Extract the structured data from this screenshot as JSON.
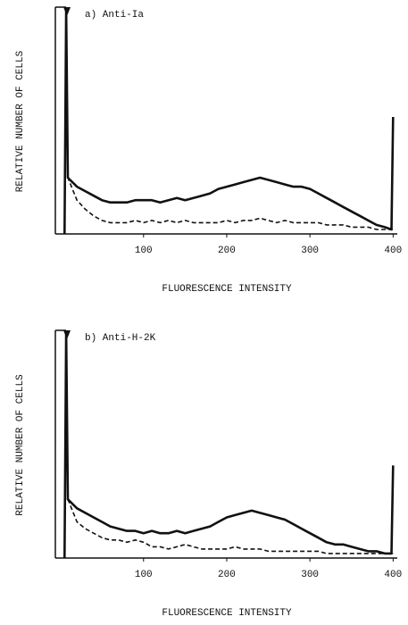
{
  "chart_data": [
    {
      "type": "line",
      "title": "a) Anti-Ia",
      "xlabel": "FLUORESCENCE INTENSITY",
      "ylabel": "RELATIVE NUMBER OF CELLS",
      "x": [
        5,
        7,
        9,
        20,
        30,
        40,
        50,
        60,
        70,
        80,
        90,
        100,
        110,
        120,
        130,
        140,
        150,
        160,
        170,
        180,
        190,
        200,
        210,
        220,
        230,
        240,
        250,
        260,
        270,
        280,
        290,
        300,
        310,
        320,
        330,
        340,
        350,
        360,
        370,
        380,
        390,
        398,
        400
      ],
      "series": [
        {
          "color": "#111111",
          "dashed": false,
          "values": [
            0,
            100,
            25,
            21,
            19,
            17,
            15,
            14,
            14,
            14,
            15,
            15,
            15,
            14,
            15,
            16,
            15,
            16,
            17,
            18,
            20,
            21,
            22,
            23,
            24,
            25,
            24,
            23,
            22,
            21,
            21,
            20,
            18,
            16,
            14,
            12,
            10,
            8,
            6,
            4,
            3,
            2,
            52
          ]
        },
        {
          "color": "#111111",
          "dashed": true,
          "values": [
            0,
            100,
            25,
            15,
            11,
            8,
            6,
            5,
            5,
            5,
            6,
            5,
            6,
            5,
            6,
            5,
            6,
            5,
            5,
            5,
            5,
            6,
            5,
            6,
            6,
            7,
            6,
            5,
            6,
            5,
            5,
            5,
            5,
            4,
            4,
            4,
            3,
            3,
            3,
            2,
            2,
            2,
            2
          ]
        }
      ],
      "xlim": [
        -6,
        405
      ],
      "xticks": [
        100,
        200,
        300,
        400
      ],
      "ylim": [
        0,
        100
      ]
    },
    {
      "type": "line",
      "title": "b) Anti-H-2K",
      "xlabel": "FLUORESCENCE INTENSITY",
      "ylabel": "RELATIVE NUMBER OF CELLS",
      "x": [
        5,
        7,
        9,
        20,
        30,
        40,
        50,
        60,
        70,
        80,
        90,
        100,
        110,
        120,
        130,
        140,
        150,
        160,
        170,
        180,
        190,
        200,
        210,
        220,
        230,
        240,
        250,
        260,
        270,
        280,
        290,
        300,
        310,
        320,
        330,
        340,
        350,
        360,
        370,
        380,
        390,
        398,
        400
      ],
      "series": [
        {
          "color": "#111111",
          "dashed": false,
          "values": [
            0,
            100,
            26,
            22,
            20,
            18,
            16,
            14,
            13,
            12,
            12,
            11,
            12,
            11,
            11,
            12,
            11,
            12,
            13,
            14,
            16,
            18,
            19,
            20,
            21,
            20,
            19,
            18,
            17,
            15,
            13,
            11,
            9,
            7,
            6,
            6,
            5,
            4,
            3,
            3,
            2,
            2,
            41
          ]
        },
        {
          "color": "#111111",
          "dashed": true,
          "values": [
            0,
            100,
            26,
            16,
            13,
            11,
            9,
            8,
            8,
            7,
            8,
            7,
            5,
            5,
            4,
            5,
            6,
            5,
            4,
            4,
            4,
            4,
            5,
            4,
            4,
            4,
            3,
            3,
            3,
            3,
            3,
            3,
            3,
            2,
            2,
            2,
            2,
            2,
            2,
            2,
            2,
            2,
            2
          ]
        }
      ],
      "xlim": [
        -6,
        405
      ],
      "xticks": [
        100,
        200,
        300,
        400
      ],
      "ylim": [
        0,
        100
      ]
    }
  ]
}
